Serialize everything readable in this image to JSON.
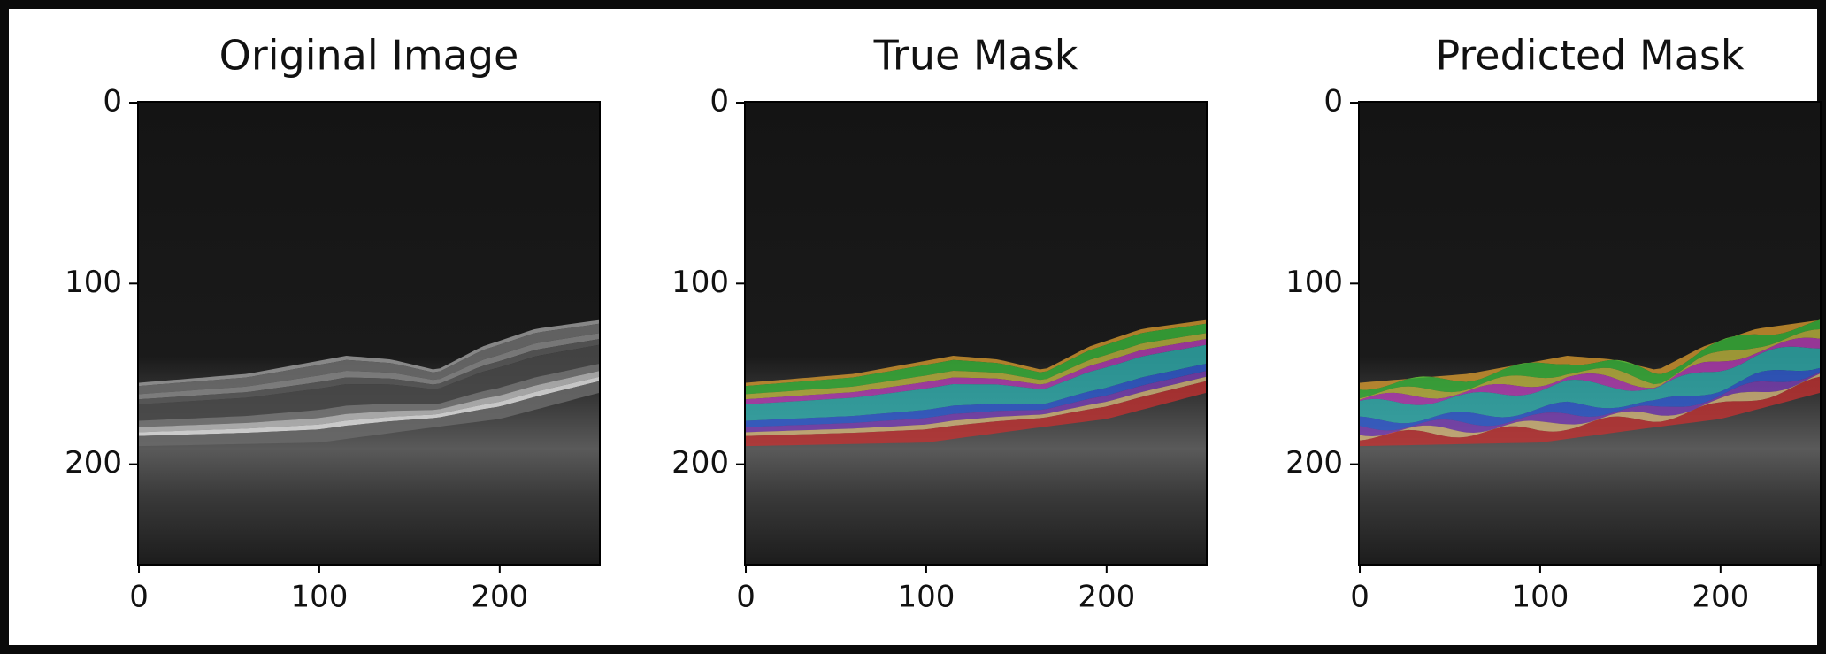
{
  "chart_data": [
    {
      "type": "image",
      "title": "Original Image",
      "xlim": [
        -0.5,
        255.5
      ],
      "ylim": [
        255.5,
        -0.5
      ],
      "xticks": [
        0,
        100,
        200
      ],
      "yticks": [
        0,
        100,
        200
      ]
    },
    {
      "type": "image",
      "title": "True Mask",
      "xlim": [
        -0.5,
        255.5
      ],
      "ylim": [
        255.5,
        -0.5
      ],
      "xticks": [
        0,
        100,
        200
      ],
      "yticks": [
        0,
        100,
        200
      ]
    },
    {
      "type": "image",
      "title": "Predicted Mask",
      "xlim": [
        -0.5,
        255.5
      ],
      "ylim": [
        255.5,
        -0.5
      ],
      "xticks": [
        0,
        100,
        200
      ],
      "yticks": [
        0,
        100,
        200
      ]
    }
  ]
}
